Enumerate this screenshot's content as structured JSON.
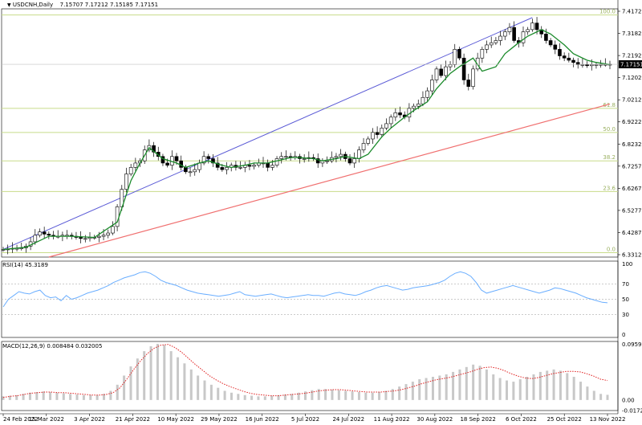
{
  "header": {
    "symbol_line": "USDCNH,Daily",
    "ohlc": "7.15707 7.17212 7.15185 7.17151"
  },
  "colors": {
    "background": "#ffffff",
    "candle": "#000000",
    "ma": "#1a8a2a",
    "upper_channel": "#5b5bd6",
    "lower_channel": "#f07070",
    "fib": "#c8dc8a",
    "rsi": "#6aaeff",
    "macd_hist": "#c8c8c8",
    "macd_signal": "#e02020",
    "current_price_box": "#000000"
  },
  "chart_data": [
    {
      "type": "line",
      "title": "USDCNH,Daily",
      "subtitle": "7.15707 7.17212 7.15185 7.17151",
      "y_ticks": [
        "7.41720",
        "7.31820",
        "7.21920",
        "7.12020",
        "7.02120",
        "6.92220",
        "6.82320",
        "6.72570",
        "6.62670",
        "6.52770",
        "6.42870",
        "6.33120"
      ],
      "ylim": [
        6.29,
        7.425
      ],
      "current_price": "7.17151",
      "current_price_value": 7.1715,
      "x_ticks": [
        "24 Feb 2022",
        "15 Mar 2022",
        "3 Apr 2022",
        "21 Apr 2022",
        "10 May 2022",
        "29 May 2022",
        "16 Jun 2022",
        "5 Jul 2022",
        "24 Jul 2022",
        "11 Aug 2022",
        "30 Aug 2022",
        "18 Sep 2022",
        "6 Oct 2022",
        "25 Oct 2022",
        "13 Nov 2022"
      ],
      "fibonacci_levels": [
        {
          "label": "100.0",
          "value": 7.397
        },
        {
          "label": "61.8",
          "value": 6.97
        },
        {
          "label": "50.0",
          "value": 6.86
        },
        {
          "label": "38.2",
          "value": 6.73
        },
        {
          "label": "23.6",
          "value": 6.59
        },
        {
          "label": "0.0",
          "value": 6.31
        }
      ],
      "series": [
        {
          "style": "candle",
          "x": [
            0,
            2,
            4,
            6,
            8,
            10,
            12,
            14,
            16,
            18,
            20,
            22,
            24,
            26,
            28,
            30,
            32,
            34,
            36,
            38,
            40,
            42,
            44,
            46,
            48,
            50,
            52,
            54,
            56,
            58,
            60,
            62,
            64,
            66,
            68,
            70,
            72,
            74,
            76,
            78,
            80,
            82,
            84,
            86,
            88,
            90,
            92,
            94,
            96,
            98,
            100,
            102,
            104,
            106,
            108,
            110,
            112,
            114,
            116,
            118,
            120,
            122,
            124,
            126,
            128,
            130,
            132,
            134,
            136,
            138,
            140,
            142,
            144,
            146,
            148,
            150,
            152,
            154,
            156,
            158,
            160,
            162,
            164,
            166,
            168,
            170,
            172,
            174,
            176,
            178,
            180,
            182,
            184,
            186,
            188,
            190,
            192,
            194,
            196,
            198,
            200,
            202,
            204,
            206,
            208,
            210,
            212,
            214,
            216,
            218,
            220,
            222,
            224,
            226,
            228,
            230,
            232,
            234,
            236,
            238,
            240,
            242,
            244,
            246,
            248,
            250,
            252,
            254,
            256,
            258,
            260,
            262,
            264,
            266
          ],
          "values": [
            6.325,
            6.327,
            6.33,
            6.33,
            6.332,
            6.34,
            6.36,
            6.39,
            6.405,
            6.395,
            6.39,
            6.385,
            6.385,
            6.39,
            6.39,
            6.385,
            6.38,
            6.375,
            6.375,
            6.38,
            6.38,
            6.385,
            6.39,
            6.4,
            6.43,
            6.52,
            6.6,
            6.67,
            6.7,
            6.72,
            6.73,
            6.78,
            6.8,
            6.77,
            6.75,
            6.72,
            6.71,
            6.75,
            6.73,
            6.7,
            6.68,
            6.68,
            6.69,
            6.72,
            6.75,
            6.74,
            6.72,
            6.7,
            6.69,
            6.7,
            6.71,
            6.7,
            6.7,
            6.71,
            6.705,
            6.71,
            6.72,
            6.72,
            6.7,
            6.71,
            6.74,
            6.75,
            6.75,
            6.745,
            6.75,
            6.74,
            6.74,
            6.745,
            6.74,
            6.72,
            6.73,
            6.73,
            6.745,
            6.75,
            6.76,
            6.74,
            6.72,
            6.74,
            6.78,
            6.81,
            6.83,
            6.86,
            6.85,
            6.88,
            6.9,
            6.93,
            6.95,
            6.94,
            6.93,
            6.97,
            6.98,
            6.99,
            7.02,
            7.05,
            7.1,
            7.15,
            7.12,
            7.16,
            7.17,
            7.24,
            7.2,
            7.1,
            7.07,
            7.15,
            7.2,
            7.24,
            7.26,
            7.27,
            7.28,
            7.3,
            7.32,
            7.34,
            7.28,
            7.27,
            7.32,
            7.33,
            7.36,
            7.33,
            7.31,
            7.28,
            7.26,
            7.24,
            7.21,
            7.2,
            7.19,
            7.18,
            7.17,
            7.17,
            7.165,
            7.17,
            7.17,
            7.171,
            7.171,
            7.1715
          ]
        },
        {
          "style": "ma",
          "x": [
            0,
            10,
            20,
            30,
            40,
            50,
            56,
            60,
            64,
            70,
            76,
            80,
            86,
            90,
            96,
            100,
            106,
            110,
            116,
            120,
            126,
            130,
            136,
            140,
            146,
            150,
            156,
            160,
            166,
            170,
            176,
            180,
            186,
            190,
            196,
            200,
            206,
            210,
            216,
            220,
            226,
            230,
            236,
            240,
            246,
            250,
            256,
            260,
            266
          ],
          "values": [
            6.325,
            6.335,
            6.385,
            6.385,
            6.38,
            6.45,
            6.64,
            6.72,
            6.79,
            6.74,
            6.72,
            6.7,
            6.72,
            6.73,
            6.71,
            6.7,
            6.71,
            6.72,
            6.72,
            6.73,
            6.745,
            6.745,
            6.74,
            6.73,
            6.74,
            6.75,
            6.74,
            6.76,
            6.84,
            6.88,
            6.93,
            6.96,
            7.0,
            7.06,
            7.13,
            7.16,
            7.2,
            7.14,
            7.16,
            7.22,
            7.27,
            7.3,
            7.33,
            7.31,
            7.26,
            7.22,
            7.19,
            7.18,
            7.17
          ]
        },
        {
          "style": "upper_channel",
          "x": [
            0,
            232
          ],
          "values": [
            6.325,
            7.385
          ]
        },
        {
          "style": "lower_channel",
          "x": [
            20,
            266
          ],
          "values": [
            6.29,
            6.99
          ]
        }
      ]
    },
    {
      "type": "line",
      "title": "RSI(14) 45.3189",
      "y_ticks": [
        "100",
        "70",
        "50",
        "30",
        "0"
      ],
      "levels": [
        70,
        50,
        30
      ],
      "ylim": [
        0,
        100
      ],
      "series": [
        {
          "values": [
            40,
            50,
            55,
            60,
            58,
            57,
            60,
            62,
            55,
            52,
            53,
            48,
            55,
            50,
            52,
            55,
            58,
            60,
            62,
            65,
            68,
            72,
            75,
            78,
            80,
            82,
            85,
            86,
            84,
            80,
            75,
            72,
            70,
            68,
            65,
            62,
            60,
            58,
            57,
            56,
            55,
            54,
            55,
            56,
            58,
            60,
            56,
            55,
            54,
            55,
            56,
            57,
            55,
            53,
            52,
            53,
            54,
            55,
            56,
            55,
            55,
            54,
            56,
            58,
            59,
            57,
            56,
            55,
            57,
            60,
            62,
            65,
            67,
            68,
            66,
            64,
            62,
            63,
            65,
            66,
            67,
            68,
            70,
            72,
            75,
            80,
            84,
            86,
            84,
            80,
            72,
            62,
            58,
            60,
            62,
            64,
            66,
            68,
            66,
            64,
            62,
            60,
            58,
            60,
            62,
            65,
            64,
            62,
            60,
            58,
            55,
            52,
            50,
            48,
            46,
            45.3189
          ]
        }
      ]
    },
    {
      "type": "bar",
      "title": "MACD(12,26,9) 0.008484 0.032005",
      "y_ticks": [
        "0.095908",
        "0.00",
        "-0.017276"
      ],
      "ylim": [
        -0.017276,
        0.095908
      ],
      "series": [
        {
          "name": "MACD",
          "style": "histogram",
          "values": [
            0.006,
            0.007,
            0.008,
            0.01,
            0.012,
            0.013,
            0.014,
            0.013,
            0.012,
            0.011,
            0.01,
            0.009,
            0.008,
            0.008,
            0.008,
            0.01,
            0.015,
            0.025,
            0.04,
            0.055,
            0.068,
            0.08,
            0.088,
            0.092,
            0.09,
            0.08,
            0.07,
            0.06,
            0.05,
            0.04,
            0.032,
            0.025,
            0.02,
            0.015,
            0.012,
            0.01,
            0.008,
            0.007,
            0.006,
            0.006,
            0.007,
            0.008,
            0.009,
            0.01,
            0.012,
            0.014,
            0.016,
            0.018,
            0.018,
            0.017,
            0.016,
            0.015,
            0.014,
            0.013,
            0.012,
            0.012,
            0.013,
            0.015,
            0.018,
            0.022,
            0.026,
            0.03,
            0.034,
            0.036,
            0.038,
            0.04,
            0.042,
            0.046,
            0.05,
            0.054,
            0.058,
            0.056,
            0.05,
            0.042,
            0.036,
            0.032,
            0.03,
            0.034,
            0.038,
            0.042,
            0.046,
            0.048,
            0.05,
            0.048,
            0.044,
            0.038,
            0.03,
            0.022,
            0.015,
            0.01,
            0.008484
          ]
        },
        {
          "name": "Signal",
          "style": "dotted",
          "values": [
            0.004,
            0.006,
            0.007,
            0.009,
            0.011,
            0.012,
            0.013,
            0.013,
            0.012,
            0.012,
            0.011,
            0.01,
            0.009,
            0.008,
            0.008,
            0.009,
            0.012,
            0.02,
            0.034,
            0.05,
            0.064,
            0.076,
            0.085,
            0.09,
            0.091,
            0.086,
            0.078,
            0.068,
            0.058,
            0.049,
            0.04,
            0.033,
            0.027,
            0.022,
            0.018,
            0.014,
            0.011,
            0.009,
            0.008,
            0.007,
            0.007,
            0.008,
            0.009,
            0.01,
            0.011,
            0.013,
            0.015,
            0.016,
            0.017,
            0.017,
            0.016,
            0.015,
            0.014,
            0.013,
            0.013,
            0.013,
            0.014,
            0.015,
            0.017,
            0.02,
            0.023,
            0.027,
            0.03,
            0.033,
            0.035,
            0.037,
            0.04,
            0.043,
            0.046,
            0.05,
            0.053,
            0.054,
            0.052,
            0.048,
            0.043,
            0.039,
            0.036,
            0.035,
            0.037,
            0.04,
            0.043,
            0.045,
            0.047,
            0.047,
            0.046,
            0.043,
            0.039,
            0.034,
            0.032005
          ]
        }
      ]
    }
  ]
}
